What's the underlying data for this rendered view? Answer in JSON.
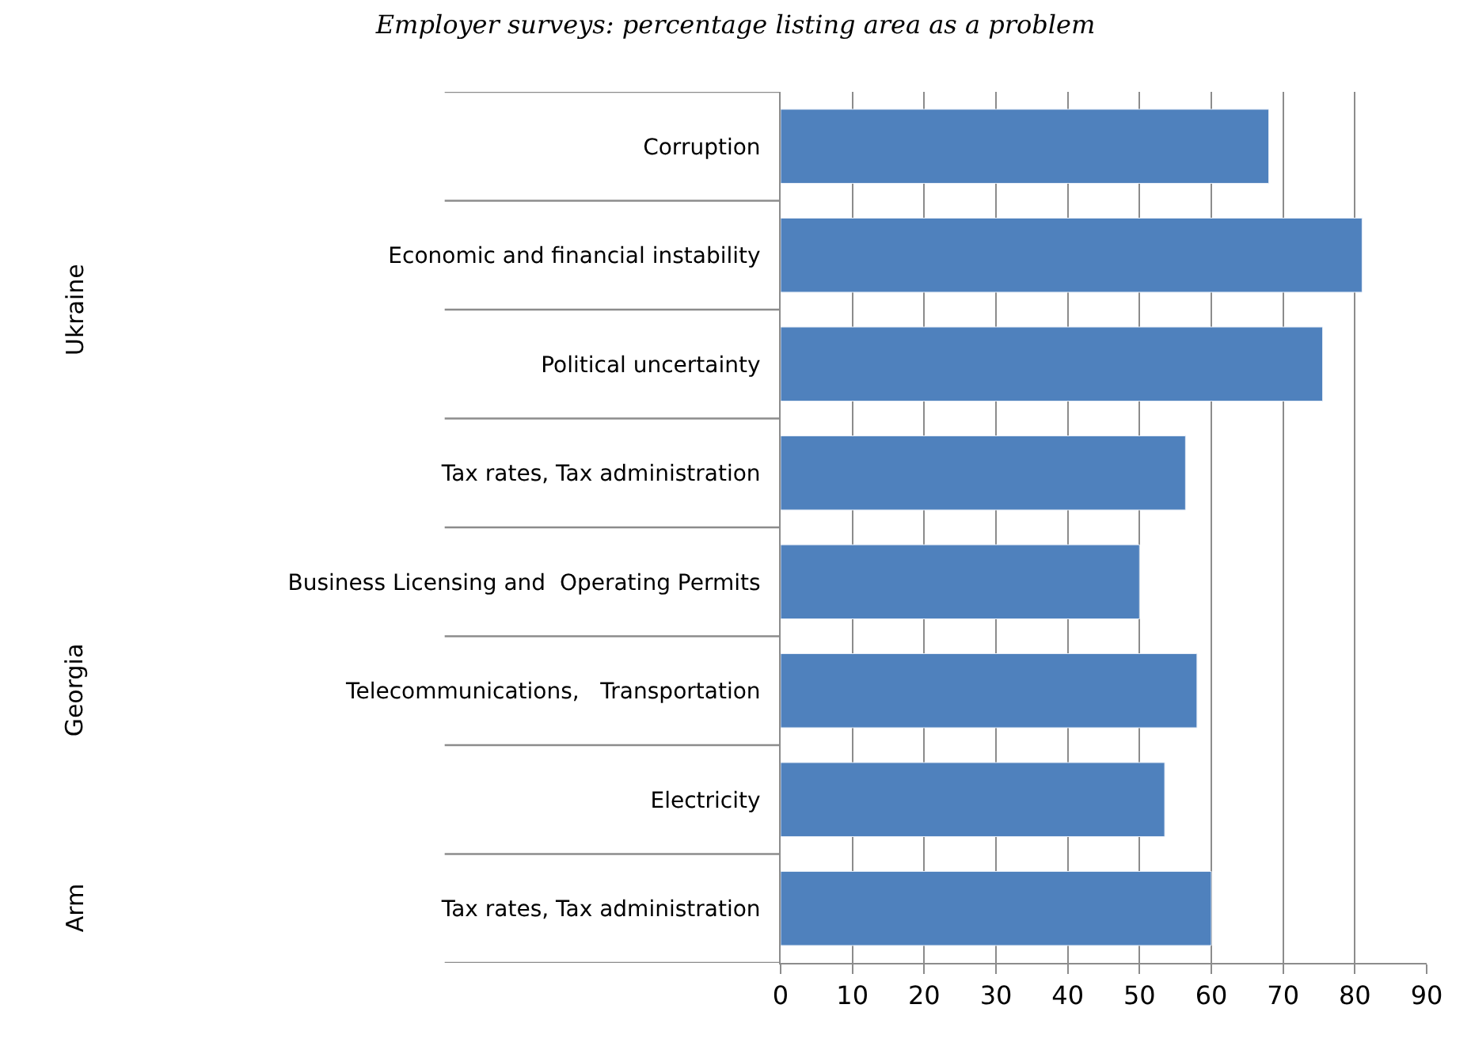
{
  "chart_data": {
    "type": "bar",
    "orientation": "horizontal",
    "title": "Employer surveys: percentage listing area as a problem",
    "categories": [
      "Corruption",
      "Economic and financial instability",
      "Political uncertainty",
      "Tax rates, Tax administration",
      "Business Licensing and  Operating Permits",
      "Telecommunications,   Transportation",
      "Electricity",
      "Tax rates, Tax administration"
    ],
    "values": [
      68,
      81,
      75.5,
      56.4,
      50,
      58,
      53.5,
      60
    ],
    "color": "#4f81bd",
    "xlim": [
      0,
      90
    ],
    "xticks": [
      0,
      10,
      20,
      30,
      40,
      50,
      60,
      70,
      80,
      90
    ],
    "grid": "x",
    "annotations": [
      "Ukraine",
      "Georgia",
      "Arm"
    ]
  }
}
